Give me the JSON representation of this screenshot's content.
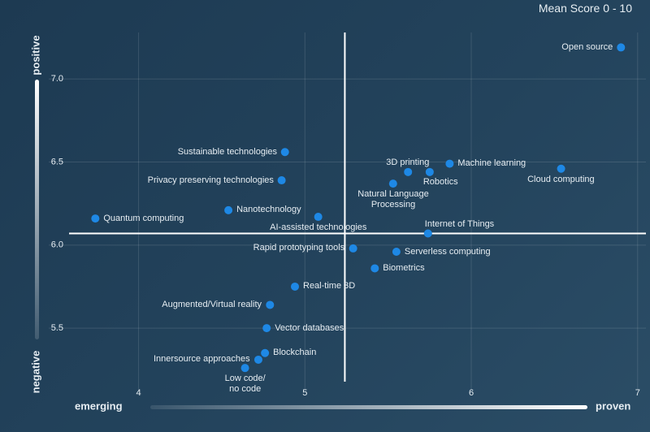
{
  "chart_data": {
    "type": "scatter",
    "title": "Mean Score 0 - 10",
    "y_positive_label": "positive",
    "y_negative_label": "negative",
    "x_low_label": "emerging",
    "x_high_label": "proven",
    "color": "#1e88e5",
    "labels": [
      "Open source",
      "Sustainable technologies",
      "Privacy preserving technologies",
      "3D printing",
      "Machine learning",
      "Robotics",
      "Natural Language\nProcessing",
      "Cloud computing",
      "Nanotechnology",
      "Quantum computing",
      "AI-assisted technologies",
      "Internet of Things",
      "Rapid prototyping tools",
      "Serverless computing",
      "Biometrics",
      "Real-time 3D",
      "Augmented/Virtual reality",
      "Vector databases",
      "Blockchain",
      "Innersource approaches",
      "Low code/\nno code"
    ],
    "x": [
      6.9,
      4.88,
      4.86,
      5.62,
      5.87,
      5.75,
      5.53,
      6.54,
      4.54,
      3.74,
      5.08,
      5.74,
      5.29,
      5.55,
      5.42,
      4.94,
      4.79,
      4.77,
      4.76,
      4.72,
      4.64
    ],
    "y": [
      7.19,
      6.56,
      6.39,
      6.44,
      6.49,
      6.44,
      6.37,
      6.46,
      6.21,
      6.16,
      6.17,
      6.07,
      5.98,
      5.96,
      5.86,
      5.75,
      5.64,
      5.5,
      5.35,
      5.31,
      5.26
    ],
    "crosshair": {
      "x": 5.24,
      "y": 6.07
    },
    "xlim": [
      3.46,
      7.05
    ],
    "ylim": [
      5.08,
      7.28
    ],
    "xticks": [
      4,
      5,
      6,
      7
    ],
    "yticks": [
      5.5,
      {
        "value": 6,
        "label": "6.0"
      },
      6.5,
      {
        "value": 7,
        "label": "7.0"
      }
    ],
    "grid": true
  }
}
